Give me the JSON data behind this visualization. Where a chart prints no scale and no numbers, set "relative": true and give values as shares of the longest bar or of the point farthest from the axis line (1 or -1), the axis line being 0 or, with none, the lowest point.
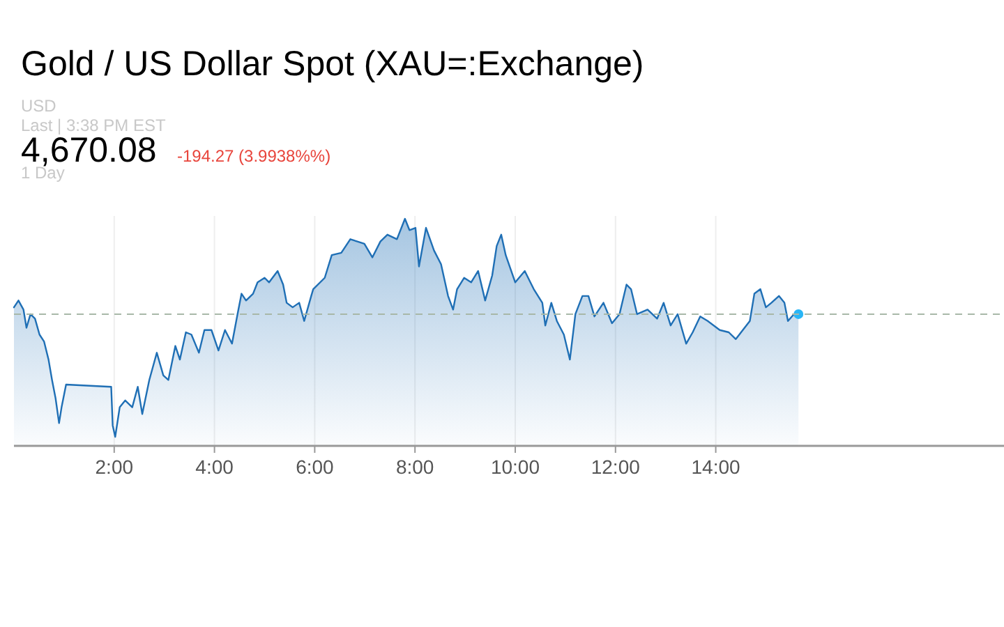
{
  "chart_data": {
    "type": "area",
    "title": "Gold / US Dollar Spot (XAU=:Exchange)",
    "subtitle": "USD",
    "annotations": [
      "Last | 3:38 PM EST",
      "4,670.08",
      "-194.27 (3.9938%%)",
      "1 Day"
    ],
    "relative": true,
    "xlim": [
      0,
      19.75
    ],
    "xticks": [
      {
        "value": 2,
        "label": "2:00"
      },
      {
        "value": 4,
        "label": "4:00"
      },
      {
        "value": 6,
        "label": "6:00"
      },
      {
        "value": 8,
        "label": "8:00"
      },
      {
        "value": 10,
        "label": "10:00"
      },
      {
        "value": 12,
        "label": "12:00"
      },
      {
        "value": 14,
        "label": "14:00"
      }
    ],
    "grid": "x",
    "ref_lines": [
      {
        "axis": "y",
        "value": 0.58,
        "color": "#a8b8a8",
        "line_style": "dashed"
      }
    ],
    "series": [
      {
        "color": "#1f6fb5",
        "x": [
          0,
          0.09,
          0.19,
          0.25,
          0.33,
          0.42,
          0.51,
          0.6,
          0.69,
          0.76,
          0.83,
          0.9,
          0.95,
          1.04,
          1.94,
          1.97,
          2.02,
          2.11,
          2.22,
          2.36,
          2.47,
          2.56,
          2.7,
          2.85,
          2.98,
          3.08,
          3.22,
          3.31,
          3.43,
          3.54,
          3.69,
          3.8,
          3.94,
          4.08,
          4.21,
          4.35,
          4.46,
          4.54,
          4.63,
          4.77,
          4.86,
          5,
          5.09,
          5.26,
          5.37,
          5.44,
          5.56,
          5.69,
          5.79,
          5.93,
          5.97,
          6.2,
          6.34,
          6.53,
          6.71,
          6.85,
          6.99,
          7.15,
          7.31,
          7.45,
          7.64,
          7.8,
          7.89,
          8.01,
          8.08,
          8.22,
          8.38,
          8.52,
          8.66,
          8.76,
          8.84,
          8.98,
          9.12,
          9.26,
          9.4,
          9.54,
          9.63,
          9.72,
          9.81,
          10,
          10.19,
          10.37,
          10.54,
          10.6,
          10.72,
          10.83,
          10.97,
          11.09,
          11.2,
          11.34,
          11.46,
          11.58,
          11.76,
          11.93,
          12.08,
          12.22,
          12.31,
          12.43,
          12.64,
          12.83,
          12.96,
          13.1,
          13.24,
          13.41,
          13.54,
          13.69,
          13.84,
          14.08,
          14.26,
          14.4,
          14.54,
          14.68,
          14.77,
          14.89,
          15,
          15.11,
          15.26,
          15.37,
          15.44,
          15.56,
          15.65
        ],
        "values": [
          0.61,
          0.64,
          0.6,
          0.52,
          0.58,
          0.56,
          0.49,
          0.46,
          0.38,
          0.29,
          0.21,
          0.1,
          0.17,
          0.27,
          0.26,
          0.09,
          0.04,
          0.17,
          0.2,
          0.17,
          0.26,
          0.14,
          0.29,
          0.41,
          0.31,
          0.29,
          0.44,
          0.38,
          0.5,
          0.49,
          0.41,
          0.51,
          0.51,
          0.42,
          0.51,
          0.45,
          0.58,
          0.67,
          0.64,
          0.67,
          0.72,
          0.74,
          0.72,
          0.77,
          0.71,
          0.63,
          0.61,
          0.63,
          0.55,
          0.66,
          0.69,
          0.74,
          0.84,
          0.85,
          0.91,
          0.9,
          0.89,
          0.83,
          0.9,
          0.93,
          0.91,
          1,
          0.95,
          0.96,
          0.79,
          0.96,
          0.86,
          0.8,
          0.66,
          0.6,
          0.69,
          0.74,
          0.72,
          0.77,
          0.64,
          0.75,
          0.88,
          0.93,
          0.84,
          0.72,
          0.77,
          0.69,
          0.63,
          0.53,
          0.63,
          0.55,
          0.49,
          0.38,
          0.58,
          0.66,
          0.66,
          0.57,
          0.63,
          0.54,
          0.58,
          0.71,
          0.69,
          0.58,
          0.6,
          0.56,
          0.63,
          0.53,
          0.58,
          0.45,
          0.5,
          0.57,
          0.55,
          0.51,
          0.5,
          0.47,
          0.51,
          0.55,
          0.67,
          0.69,
          0.61,
          0.63,
          0.66,
          0.63,
          0.55,
          0.58,
          0.58
        ]
      }
    ]
  }
}
